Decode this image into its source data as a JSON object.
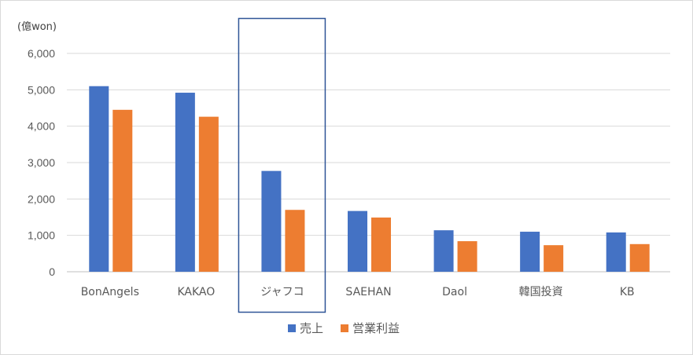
{
  "chart_data": {
    "type": "bar",
    "unit_label": "(億won)",
    "categories": [
      "BonAngels",
      "KAKAO",
      "ジャフコ",
      "SAEHAN",
      "Daol",
      "韓国投資",
      "KB"
    ],
    "series": [
      {
        "name": "売上",
        "color": "#4472C4",
        "values": [
          5100,
          4920,
          2770,
          1670,
          1140,
          1100,
          1080
        ]
      },
      {
        "name": "営業利益",
        "color": "#ED7D31",
        "values": [
          4450,
          4260,
          1700,
          1490,
          840,
          730,
          760
        ]
      }
    ],
    "ylim": [
      0,
      6000
    ],
    "yticks": [
      0,
      1000,
      2000,
      3000,
      4000,
      5000,
      6000
    ],
    "ytick_labels": [
      "0",
      "1,000",
      "2,000",
      "3,000",
      "4,000",
      "5,000",
      "6,000"
    ],
    "grid": true,
    "legend_position": "bottom",
    "highlight_category": "ジャフコ",
    "highlight_color": "#2F5597"
  }
}
